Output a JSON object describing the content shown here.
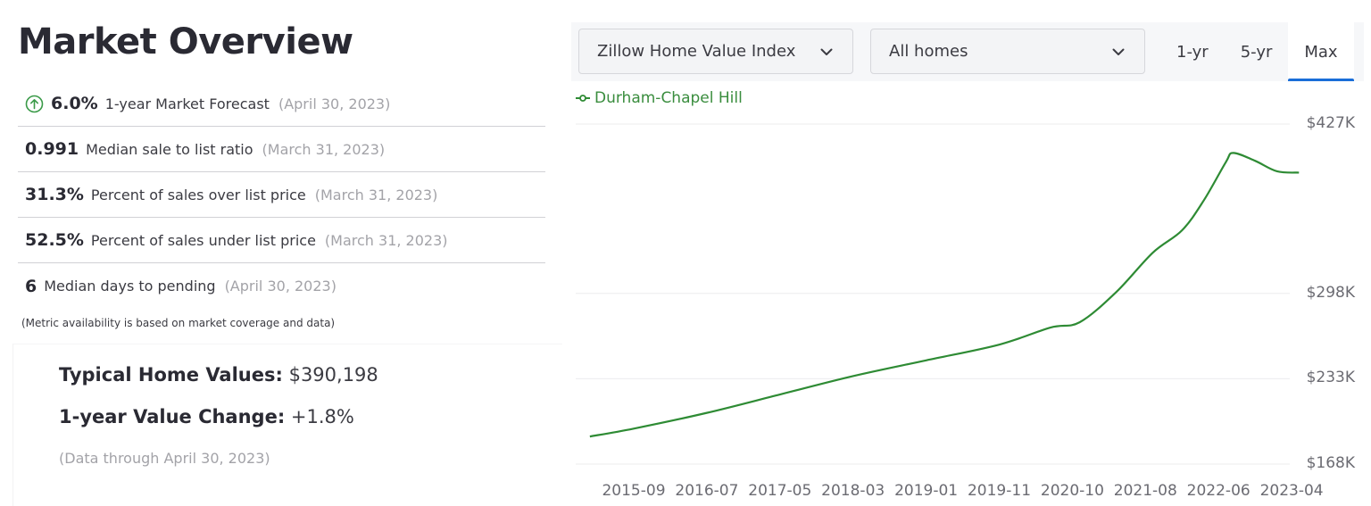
{
  "overview": {
    "title": "Market Overview",
    "metrics": [
      {
        "value": "6.0%",
        "label": "1-year Market Forecast",
        "date": "(April 30, 2023)",
        "icon": "arrow-up-circle-icon"
      },
      {
        "value": "0.991",
        "label": "Median sale to list ratio",
        "date": "(March 31, 2023)"
      },
      {
        "value": "31.3%",
        "label": "Percent of sales over list price",
        "date": "(March 31, 2023)"
      },
      {
        "value": "52.5%",
        "label": "Percent of sales under list price",
        "date": "(March 31, 2023)"
      },
      {
        "value": "6",
        "label": "Median days to pending",
        "date": "(April 30, 2023)"
      }
    ],
    "note": "(Metric availability is based on market coverage and data)",
    "typical_home_values_label": "Typical Home Values:",
    "typical_home_values": "$390,198",
    "value_change_label": "1-year Value Change:",
    "value_change": "+1.8%",
    "data_through": "(Data through April 30, 2023)"
  },
  "toolbar": {
    "metric_dropdown": "Zillow Home Value Index",
    "home_type_dropdown": "All homes",
    "tabs": [
      {
        "label": "1-yr",
        "active": false
      },
      {
        "label": "5-yr",
        "active": false
      },
      {
        "label": "Max",
        "active": true
      }
    ],
    "accent": "#1a6ed8"
  },
  "legend": {
    "series_name": "Durham-Chapel Hill",
    "color": "#2e8b34"
  },
  "chart_data": {
    "type": "line",
    "title": "",
    "xlabel": "",
    "ylabel": "",
    "x_tick_labels": [
      "2015-09",
      "2016-07",
      "2017-05",
      "2018-03",
      "2019-01",
      "2019-11",
      "2020-10",
      "2021-08",
      "2022-06",
      "2023-04"
    ],
    "y_tick_labels": [
      "$427K",
      "$298K",
      "$233K",
      "$168K"
    ],
    "y_tick_values": [
      427,
      298,
      233,
      168
    ],
    "ylim": [
      168,
      427
    ],
    "grid": true,
    "legend_position": "top-left",
    "series": [
      {
        "name": "Durham-Chapel Hill",
        "color": "#2e8b34",
        "x": [
          "2015-03",
          "2015-09",
          "2016-07",
          "2017-05",
          "2018-03",
          "2019-01",
          "2019-11",
          "2020-06",
          "2020-10",
          "2021-03",
          "2021-08",
          "2021-12",
          "2022-03",
          "2022-06",
          "2022-07",
          "2022-10",
          "2023-01",
          "2023-04"
        ],
        "values": [
          189,
          195,
          207,
          221,
          235,
          247,
          259,
          272,
          276,
          299,
          329,
          346,
          369,
          398,
          405,
          399,
          391,
          390
        ]
      }
    ]
  }
}
